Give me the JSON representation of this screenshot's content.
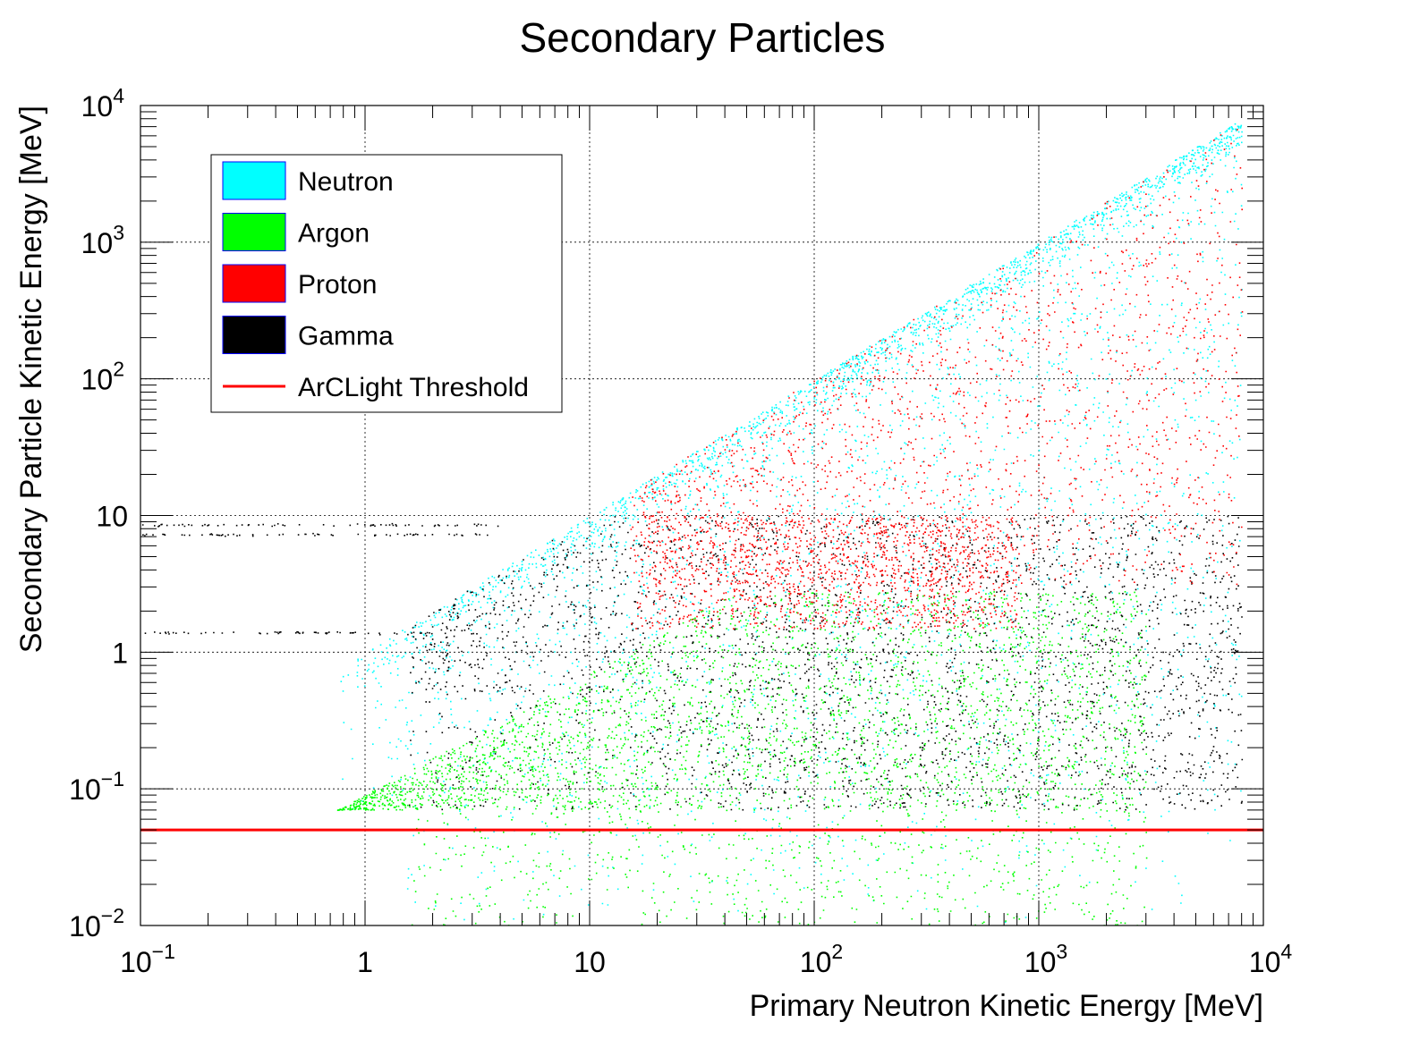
{
  "chart_data": {
    "type": "scatter",
    "title": "Secondary Particles",
    "xlabel": "Primary Neutron Kinetic Energy [MeV]",
    "ylabel": "Secondary Particle Kinetic Energy [MeV]",
    "xscale": "log",
    "yscale": "log",
    "xlim": [
      0.1,
      10000
    ],
    "ylim": [
      0.01,
      10000
    ],
    "grid": true,
    "x_ticks": [
      {
        "value": 0.1,
        "base": "10",
        "exp": "−1"
      },
      {
        "value": 1,
        "base": "1",
        "exp": ""
      },
      {
        "value": 10,
        "base": "10",
        "exp": ""
      },
      {
        "value": 100,
        "base": "10",
        "exp": "2"
      },
      {
        "value": 1000,
        "base": "10",
        "exp": "3"
      },
      {
        "value": 10000,
        "base": "10",
        "exp": "4"
      }
    ],
    "y_ticks": [
      {
        "value": 0.01,
        "base": "10",
        "exp": "−2"
      },
      {
        "value": 0.1,
        "base": "10",
        "exp": "−1"
      },
      {
        "value": 1,
        "base": "1",
        "exp": ""
      },
      {
        "value": 10,
        "base": "10",
        "exp": ""
      },
      {
        "value": 100,
        "base": "10",
        "exp": "2"
      },
      {
        "value": 1000,
        "base": "10",
        "exp": "3"
      },
      {
        "value": 10000,
        "base": "10",
        "exp": "4"
      }
    ],
    "legend_position": "top-left",
    "legend": [
      {
        "label": "Neutron",
        "style": "box",
        "color": "#00ffff"
      },
      {
        "label": "Argon",
        "style": "box",
        "color": "#00ff00"
      },
      {
        "label": "Proton",
        "style": "box",
        "color": "#ff0000"
      },
      {
        "label": "Gamma",
        "style": "box",
        "color": "#000000"
      },
      {
        "label": "ArCLight Threshold",
        "style": "line",
        "color": "#ff0000"
      }
    ],
    "threshold": {
      "name": "ArCLight Threshold",
      "y": 0.05,
      "color": "#ff0000"
    },
    "series": [
      {
        "name": "Neutron",
        "color": "#00ffff",
        "region": {
          "x_min": 0.75,
          "x_max": 8000,
          "y_min": 0.01,
          "y_max": 7000,
          "y_upper_bound": "y = x"
        }
      },
      {
        "name": "Argon",
        "color": "#00ff00",
        "region": {
          "x_min": 0.75,
          "x_max": 3000,
          "y_min": 0.01,
          "y_max": 3,
          "y_core_min": 0.07
        }
      },
      {
        "name": "Proton",
        "color": "#ff0000",
        "region": {
          "x_min": 15,
          "x_max": 8000,
          "y_min": 0.07,
          "y_max": 7000,
          "y_core_range": [
            1.5,
            10
          ]
        }
      },
      {
        "name": "Gamma",
        "color": "#000000",
        "region": {
          "x_min": 0.1,
          "x_max": 8000,
          "y_min": 0.07,
          "y_max": 10,
          "lines_y": [
            1.4,
            7.3,
            8.6
          ]
        }
      }
    ]
  }
}
